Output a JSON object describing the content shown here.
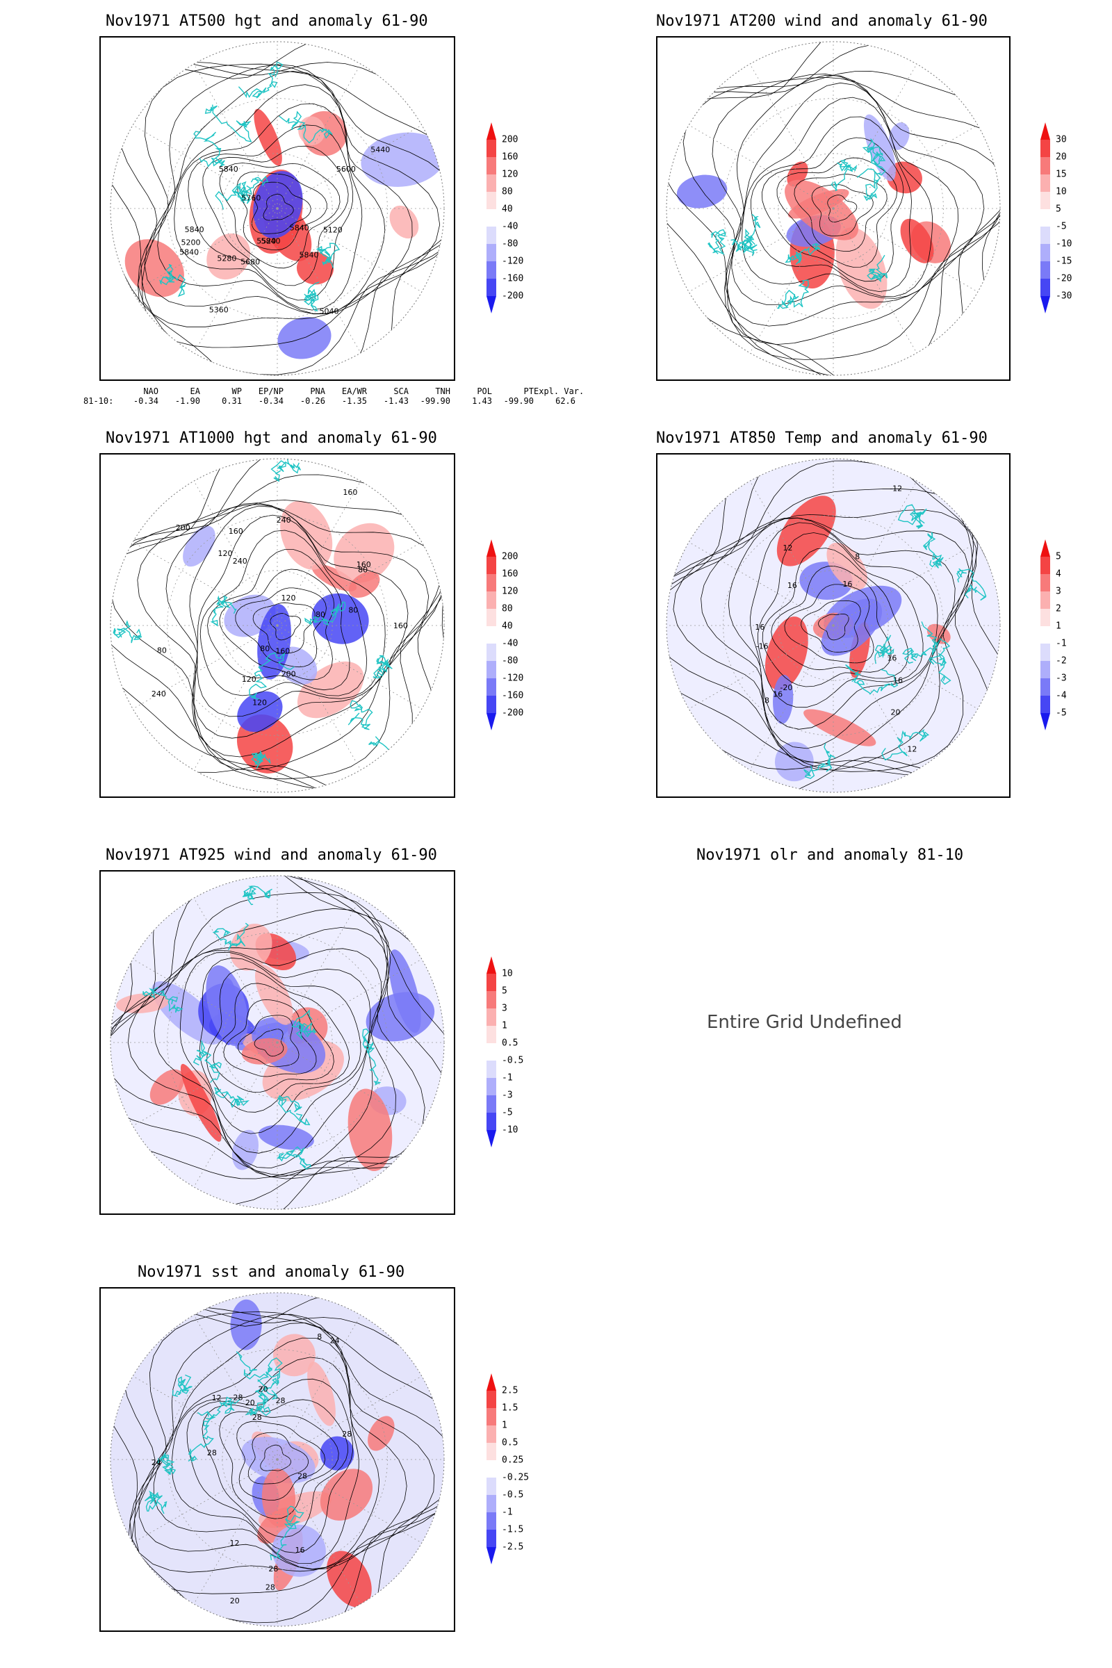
{
  "panels": [
    {
      "id": "p500",
      "title": "Nov1971 AT500 hgt and anomaly 61-90",
      "colorbar": [
        "200",
        "160",
        "120",
        "80",
        "40",
        "-40",
        "-80",
        "-120",
        "-160",
        "-200"
      ],
      "contour_labels": [
        "5840",
        "5840",
        "5840",
        "5200",
        "5040",
        "5120",
        "5280",
        "5360",
        "5440",
        "5520",
        "5600",
        "5680",
        "5760",
        "5840",
        "5840",
        "5840"
      ]
    },
    {
      "id": "p200",
      "title": "Nov1971 AT200 wind and anomaly 61-90",
      "colorbar": [
        "30",
        "20",
        "15",
        "10",
        "5",
        "-5",
        "-10",
        "-15",
        "-20",
        "-30"
      ],
      "contour_labels": []
    },
    {
      "id": "p1000",
      "title": "Nov1971 AT1000 hgt and anomaly 61-90",
      "colorbar": [
        "200",
        "160",
        "120",
        "80",
        "40",
        "-40",
        "-80",
        "-120",
        "-160",
        "-200"
      ],
      "contour_labels": [
        "80",
        "120",
        "160",
        "160",
        "200",
        "80",
        "160",
        "120",
        "240",
        "240",
        "200",
        "160",
        "120",
        "240",
        "160",
        "80",
        "120",
        "80",
        "80"
      ]
    },
    {
      "id": "p850",
      "title": "Nov1971 AT850 Temp and anomaly 61-90",
      "colorbar": [
        "5",
        "4",
        "3",
        "2",
        "1",
        "-1",
        "-2",
        "-3",
        "-4",
        "-5"
      ],
      "contour_labels": [
        "16",
        "12",
        "16",
        "16",
        "-20",
        "-16",
        "-12",
        "8",
        "12",
        "16",
        "8",
        "16",
        "20",
        "16"
      ]
    },
    {
      "id": "p925",
      "title": "Nov1971 AT925 wind and anomaly 61-90",
      "colorbar": [
        "10",
        "5",
        "3",
        "1",
        "0.5",
        "-0.5",
        "-1",
        "-3",
        "-5",
        "-10"
      ],
      "contour_labels": []
    },
    {
      "id": "polr",
      "title": "Nov1971 olr and anomaly 81-10",
      "colorbar": [],
      "contour_labels": [],
      "message": "Entire Grid Undefined"
    },
    {
      "id": "psst",
      "title": "Nov1971 sst and anomaly 61-90",
      "colorbar": [
        "2.5",
        "1.5",
        "1",
        "0.5",
        "0.25",
        "-0.25",
        "-0.5",
        "-1",
        "-1.5",
        "-2.5"
      ],
      "contour_labels": [
        "28",
        "24",
        "24",
        "20",
        "16",
        "12",
        "8",
        "28",
        "28",
        "28",
        "20",
        "12",
        "28",
        "28",
        "28",
        "28",
        "20"
      ]
    }
  ],
  "index_table": {
    "headers": [
      "NAO",
      "EA",
      "WP",
      "EP/NP",
      "PNA",
      "EA/WR",
      "SCA",
      "TNH",
      "POL",
      "PT",
      "Expl. Var."
    ],
    "row_label": "81-10:",
    "values": [
      "-0.34",
      "-1.90",
      "0.31",
      "-0.34",
      "-0.26",
      "-1.35",
      "-1.43",
      "-99.90",
      "1.43",
      "-99.90",
      "62.6"
    ]
  },
  "colors": {
    "red_scale": [
      "#ee1111",
      "#f44444",
      "#f77a7a",
      "#fbb0b0",
      "#fde0e0"
    ],
    "blue_scale": [
      "#dcdcfc",
      "#aeaefb",
      "#7a7af7",
      "#4646f4",
      "#1a1aee"
    ],
    "coast": "#20c4c4",
    "contour": "#000000",
    "grid": "#999999"
  }
}
